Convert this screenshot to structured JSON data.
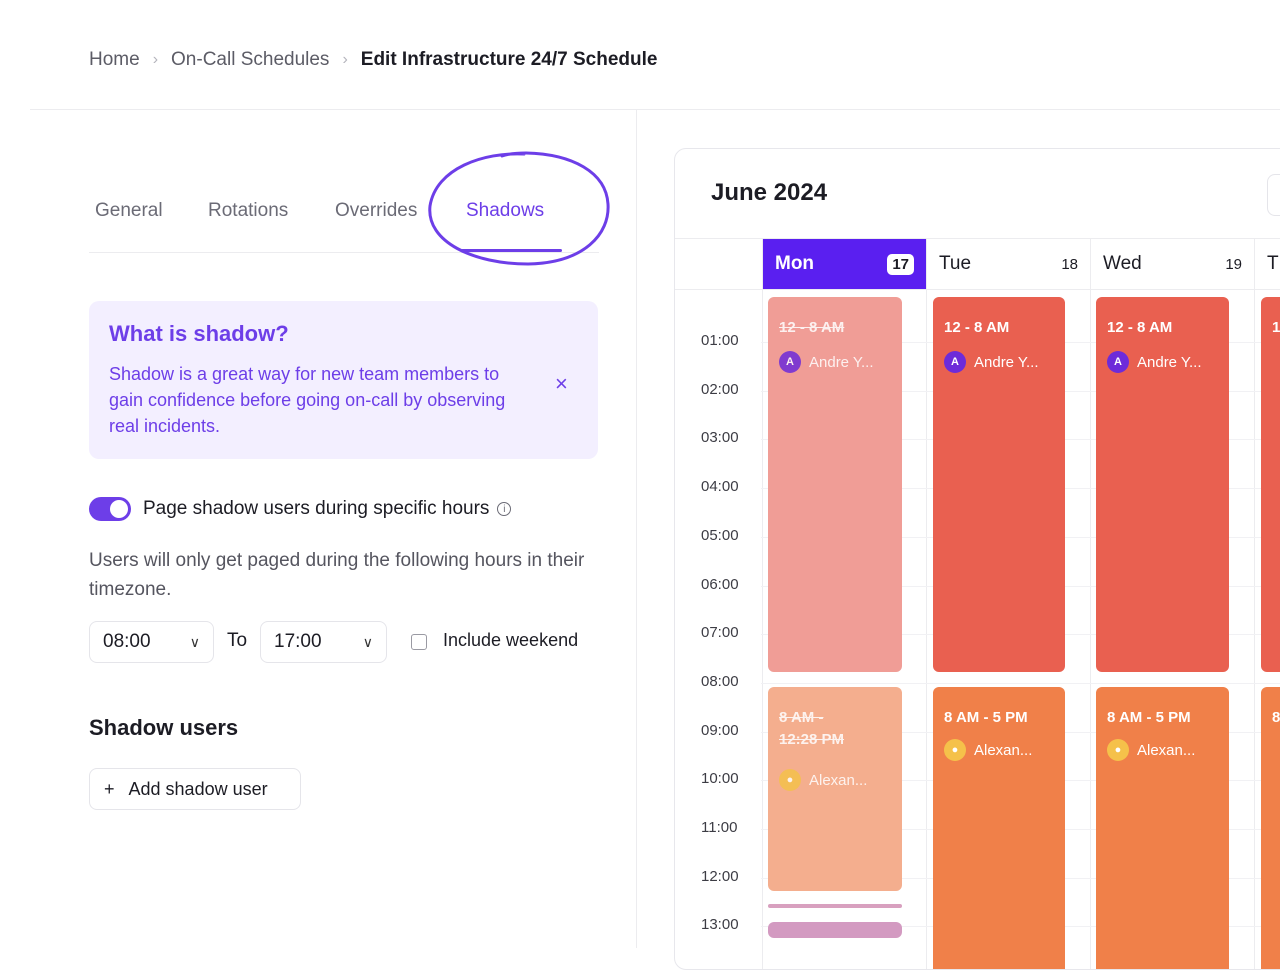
{
  "breadcrumb": {
    "home": "Home",
    "schedules": "On-Call Schedules",
    "current": "Edit Infrastructure 24/7 Schedule",
    "separator": "›"
  },
  "tabs": [
    "General",
    "Rotations",
    "Overrides",
    "Shadows"
  ],
  "active_tab": "Shadows",
  "info_box": {
    "title": "What is shadow?",
    "text": "Shadow is a great way for new team members to gain confidence before going on-call by observing real incidents.",
    "close_icon": "×"
  },
  "toggle": {
    "label": "Page shadow users during specific hours",
    "enabled": true,
    "info_icon": "i"
  },
  "help_text": "Users will only get paged during the following hours in their timezone.",
  "time_range": {
    "from": "08:00",
    "to_label": "To",
    "to": "17:00",
    "chevron": "∨"
  },
  "include_weekend": {
    "label": "Include weekend",
    "checked": false
  },
  "shadow_users": {
    "title": "Shadow users",
    "add_label": "Add shadow user",
    "plus": "+"
  },
  "calendar": {
    "title": "June 2024",
    "days": [
      {
        "name": "Mon",
        "num": "17",
        "today": true
      },
      {
        "name": "Tue",
        "num": "18",
        "today": false
      },
      {
        "name": "Wed",
        "num": "19",
        "today": false
      },
      {
        "name": "T",
        "num": "",
        "today": false
      }
    ],
    "hours": [
      "01:00",
      "02:00",
      "03:00",
      "04:00",
      "05:00",
      "06:00",
      "07:00",
      "08:00",
      "09:00",
      "10:00",
      "11:00",
      "12:00",
      "13:00"
    ],
    "shifts": {
      "mon_night": {
        "time": "12 - 8 AM",
        "user": "Andre Y...",
        "initial": "A"
      },
      "mon_day": {
        "time_line1": "8 AM -",
        "time_line2": "12:28 PM",
        "user": "Alexan..."
      },
      "tue_night": {
        "time": "12 - 8 AM",
        "user": "Andre Y...",
        "initial": "A"
      },
      "tue_day": {
        "time": "8 AM - 5 PM",
        "user": "Alexan..."
      },
      "wed_night": {
        "time": "12 - 8 AM",
        "user": "Andre Y...",
        "initial": "A"
      },
      "wed_day": {
        "time": "8 AM - 5 PM",
        "user": "Alexan..."
      },
      "thu_night": {
        "time": "1"
      },
      "thu_day": {
        "time": "8"
      }
    },
    "colors": {
      "night_active": "#e96050",
      "night_faded": "#f09d96",
      "day_active": "#f08049",
      "day_faded": "#f4ae8e",
      "today_header": "#5a1ff0",
      "accent": "#6d3ee8"
    }
  }
}
